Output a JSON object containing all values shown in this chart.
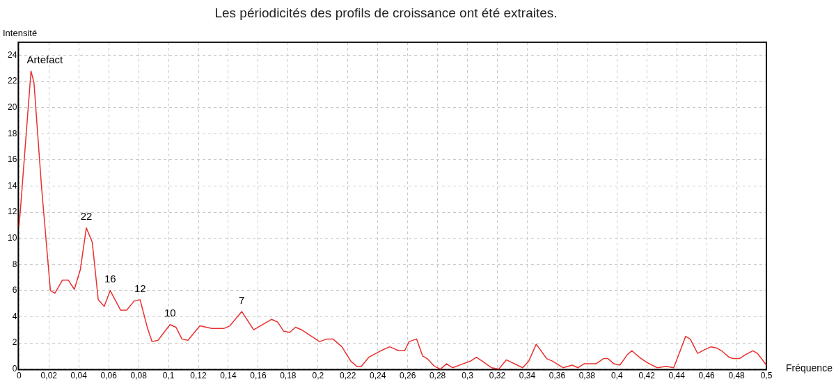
{
  "chart_data": {
    "type": "line",
    "title": "Les périodicités des profils de croissance ont été extraites.",
    "xlabel": "Fréquence",
    "ylabel": "Intensité",
    "grid": true,
    "legend": false,
    "marker": "none",
    "line_style": "solid",
    "xlim": [
      0,
      0.5
    ],
    "ylim": [
      0,
      25
    ],
    "xticks": [
      0,
      {
        "value": 0.02,
        "label": "0,02"
      },
      {
        "value": 0.04,
        "label": "0,04"
      },
      {
        "value": 0.06,
        "label": "0,06"
      },
      {
        "value": 0.08,
        "label": "0,08"
      },
      {
        "value": 0.1,
        "label": "0,1"
      },
      {
        "value": 0.12,
        "label": "0,12"
      },
      {
        "value": 0.14,
        "label": "0,14"
      },
      {
        "value": 0.16,
        "label": "0,16"
      },
      {
        "value": 0.18,
        "label": "0,18"
      },
      {
        "value": 0.2,
        "label": "0,2"
      },
      {
        "value": 0.22,
        "label": "0,22"
      },
      {
        "value": 0.24,
        "label": "0,24"
      },
      {
        "value": 0.26,
        "label": "0,26"
      },
      {
        "value": 0.28,
        "label": "0,28"
      },
      {
        "value": 0.3,
        "label": "0,3"
      },
      {
        "value": 0.32,
        "label": "0,32"
      },
      {
        "value": 0.34,
        "label": "0,34"
      },
      {
        "value": 0.36,
        "label": "0,36"
      },
      {
        "value": 0.38,
        "label": "0,38"
      },
      {
        "value": 0.4,
        "label": "0,4"
      },
      {
        "value": 0.42,
        "label": "0,42"
      },
      {
        "value": 0.44,
        "label": "0,44"
      },
      {
        "value": 0.46,
        "label": "0,46"
      },
      {
        "value": 0.48,
        "label": "0,48"
      },
      {
        "value": 0.5,
        "label": "0,5"
      }
    ],
    "yticks": [
      0,
      2,
      4,
      6,
      8,
      10,
      12,
      14,
      16,
      18,
      20,
      22,
      24
    ],
    "annotations": [
      {
        "text": "Artefact",
        "x": 0.008,
        "y": 22.8
      },
      {
        "text": "22",
        "x": 0.045,
        "y": 10.8
      },
      {
        "text": "16",
        "x": 0.061,
        "y": 6.0
      },
      {
        "text": "12",
        "x": 0.081,
        "y": 5.3
      },
      {
        "text": "10",
        "x": 0.101,
        "y": 3.4
      },
      {
        "text": "7",
        "x": 0.149,
        "y": 4.4
      }
    ],
    "series": [
      {
        "color": "#e8312f",
        "x": [
          0,
          0.001,
          0.008,
          0.01,
          0.015,
          0.021,
          0.024,
          0.029,
          0.033,
          0.037,
          0.041,
          0.045,
          0.049,
          0.053,
          0.057,
          0.061,
          0.068,
          0.072,
          0.077,
          0.081,
          0.086,
          0.089,
          0.093,
          0.101,
          0.105,
          0.109,
          0.113,
          0.121,
          0.129,
          0.137,
          0.141,
          0.149,
          0.157,
          0.169,
          0.173,
          0.177,
          0.181,
          0.185,
          0.189,
          0.201,
          0.206,
          0.21,
          0.216,
          0.222,
          0.226,
          0.229,
          0.234,
          0.242,
          0.248,
          0.254,
          0.258,
          0.261,
          0.266,
          0.27,
          0.273,
          0.278,
          0.282,
          0.286,
          0.29,
          0.297,
          0.302,
          0.306,
          0.31,
          0.316,
          0.321,
          0.326,
          0.337,
          0.341,
          0.346,
          0.353,
          0.357,
          0.364,
          0.37,
          0.374,
          0.378,
          0.386,
          0.391,
          0.394,
          0.398,
          0.402,
          0.407,
          0.41,
          0.415,
          0.42,
          0.427,
          0.433,
          0.438,
          0.446,
          0.449,
          0.454,
          0.459,
          0.463,
          0.467,
          0.47,
          0.475,
          0.478,
          0.482,
          0.486,
          0.491,
          0.494,
          0.498,
          0.5
        ],
        "values": [
          10.9,
          12.3,
          22.8,
          21.9,
          14,
          6.0,
          5.8,
          6.8,
          6.8,
          6.1,
          7.6,
          10.8,
          9.7,
          5.3,
          4.8,
          6.0,
          4.5,
          4.5,
          5.2,
          5.3,
          3.1,
          2.1,
          2.2,
          3.4,
          3.2,
          2.3,
          2.2,
          3.3,
          3.1,
          3.1,
          3.3,
          4.4,
          3.0,
          3.8,
          3.6,
          2.9,
          2.8,
          3.2,
          3.0,
          2.1,
          2.3,
          2.3,
          1.7,
          0.6,
          0.2,
          0.2,
          0.9,
          1.4,
          1.7,
          1.4,
          1.4,
          2.1,
          2.3,
          1.0,
          0.8,
          0.2,
          0,
          0.4,
          0.1,
          0.4,
          0.6,
          0.9,
          0.6,
          0.1,
          0,
          0.7,
          0.1,
          0.6,
          1.9,
          0.8,
          0.6,
          0.1,
          0.3,
          0.1,
          0.4,
          0.4,
          0.8,
          0.8,
          0.4,
          0.3,
          1.1,
          1.4,
          0.9,
          0.5,
          0.1,
          0.2,
          0.1,
          2.5,
          2.3,
          1.2,
          1.5,
          1.7,
          1.6,
          1.4,
          0.9,
          0.8,
          0.8,
          1.1,
          1.4,
          1.2,
          0.6,
          0.3
        ]
      }
    ]
  }
}
